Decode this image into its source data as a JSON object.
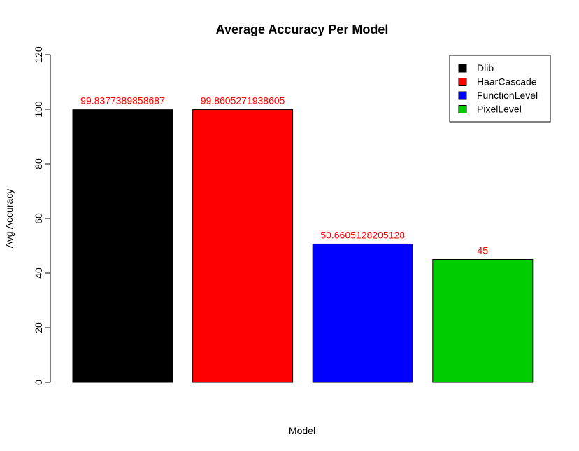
{
  "chart_data": {
    "type": "bar",
    "title": "Average Accuracy Per Model",
    "xlabel": "Model",
    "ylabel": "Avg Accuracy",
    "ylim": [
      0,
      120
    ],
    "yticks": [
      0,
      20,
      40,
      60,
      80,
      100,
      120
    ],
    "categories": [
      "Dlib",
      "HaarCascade",
      "FunctionLevel",
      "PixelLevel"
    ],
    "values": [
      99.8377389858687,
      99.8605271938605,
      50.6605128205128,
      45
    ],
    "value_labels": [
      "99.8377389858687",
      "99.8605271938605",
      "50.6605128205128",
      "45"
    ],
    "colors": [
      "#000000",
      "#ff0000",
      "#0000ff",
      "#00cd00"
    ],
    "value_label_color": "#ff0000",
    "legend": {
      "placement": "top-right",
      "entries": [
        "Dlib",
        "HaarCascade",
        "FunctionLevel",
        "PixelLevel"
      ]
    },
    "grid": false
  }
}
